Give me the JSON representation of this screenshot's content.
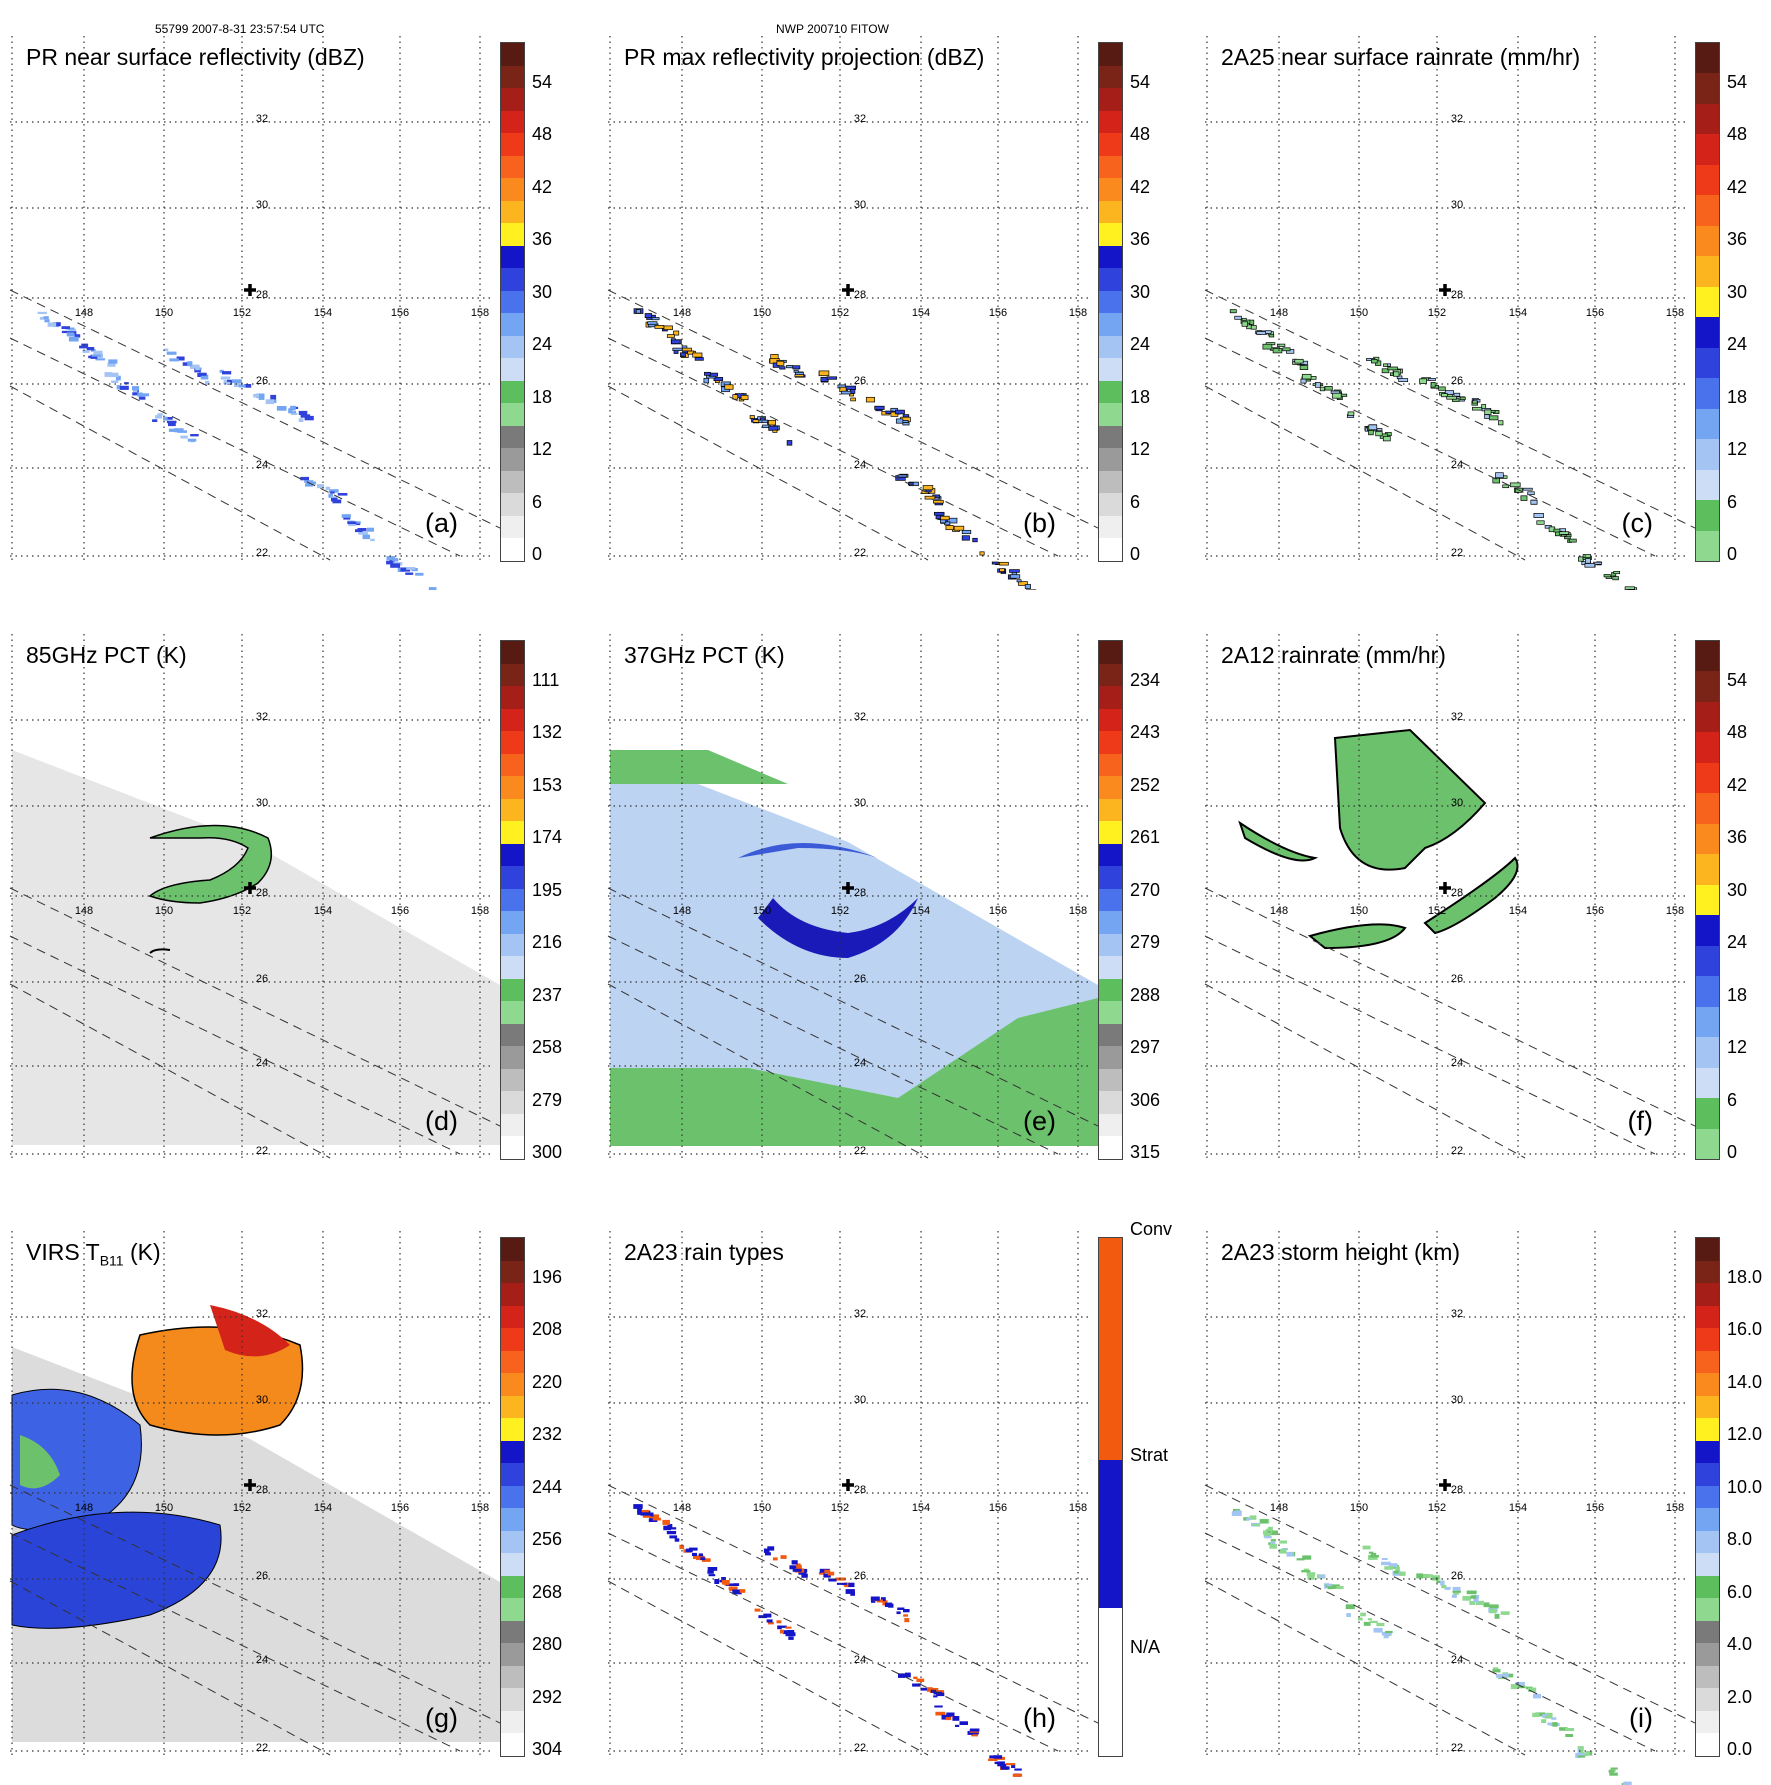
{
  "header": {
    "left": "55799 2007-8-31 23:57:54 UTC",
    "center": "NWP 200710 FITOW"
  },
  "map": {
    "lon_labels": [
      "148",
      "150",
      "152",
      "154",
      "156",
      "158"
    ],
    "lat_labels": [
      "32",
      "30",
      "28",
      "26",
      "24",
      "22"
    ],
    "center_marker": "storm-center-cross"
  },
  "panels": [
    {
      "id": "a",
      "title": "PR near surface reflectivity (dBZ)",
      "label": "(a)",
      "ticks": [
        "54",
        "48",
        "42",
        "36",
        "30",
        "24",
        "18",
        "12",
        "6",
        "0"
      ],
      "palette": "reflectivity",
      "field": "pr_strips"
    },
    {
      "id": "b",
      "title": "PR max reflectivity projection (dBZ)",
      "label": "(b)",
      "ticks": [
        "54",
        "48",
        "42",
        "36",
        "30",
        "24",
        "18",
        "12",
        "6",
        "0"
      ],
      "palette": "reflectivity",
      "field": "pr_contours"
    },
    {
      "id": "c",
      "title": "2A25 near surface rainrate (mm/hr)",
      "label": "(c)",
      "ticks": [
        "54",
        "48",
        "42",
        "36",
        "30",
        "24",
        "18",
        "12",
        "6",
        "0"
      ],
      "palette": "rainrate",
      "field": "pr_green"
    },
    {
      "id": "d",
      "title": "85GHz PCT (K)",
      "label": "(d)",
      "ticks": [
        "111",
        "132",
        "153",
        "174",
        "195",
        "216",
        "237",
        "258",
        "279",
        "300"
      ],
      "palette": "reflectivity",
      "field": "pct85"
    },
    {
      "id": "e",
      "title": "37GHz PCT (K)",
      "label": "(e)",
      "ticks": [
        "234",
        "243",
        "252",
        "261",
        "270",
        "279",
        "288",
        "297",
        "306",
        "315"
      ],
      "palette": "reflectivity",
      "field": "pct37"
    },
    {
      "id": "f",
      "title": "2A12 rainrate (mm/hr)",
      "label": "(f)",
      "ticks": [
        "54",
        "48",
        "42",
        "36",
        "30",
        "24",
        "18",
        "12",
        "6",
        "0"
      ],
      "palette": "rainrate",
      "field": "rain2a12"
    },
    {
      "id": "g",
      "title": "VIRS T",
      "title_sub": "B11",
      "title_suffix": " (K)",
      "label": "(g)",
      "ticks": [
        "196",
        "208",
        "220",
        "232",
        "244",
        "256",
        "268",
        "280",
        "292",
        "304"
      ],
      "palette": "reflectivity",
      "field": "virs"
    },
    {
      "id": "h",
      "title": "2A23 rain types",
      "label": "(h)",
      "ticks": [
        "Conv",
        "Strat",
        "N/A"
      ],
      "palette": "raintype",
      "field": "raintype"
    },
    {
      "id": "i",
      "title": "2A23 storm height (km)",
      "label": "(i)",
      "ticks": [
        "18.0",
        "16.0",
        "14.0",
        "12.0",
        "10.0",
        "8.0",
        "6.0",
        "4.0",
        "2.0",
        "0.0"
      ],
      "palette": "height",
      "field": "height"
    }
  ],
  "palettes": {
    "reflectivity": [
      "#581b14",
      "#7a2417",
      "#a51e17",
      "#d42318",
      "#ef3a1a",
      "#f7631c",
      "#fa8a1d",
      "#fdb51f",
      "#fff01f",
      "#1414c8",
      "#2f42dc",
      "#4a72ec",
      "#73a5f2",
      "#a4c5f4",
      "#cdddf6",
      "#5cbe5c",
      "#8fd88f",
      "#7a7a7a",
      "#9a9a9a",
      "#bdbdbd",
      "#dadada",
      "#efefef",
      "#ffffff"
    ],
    "rainrate": [
      "#581b14",
      "#7a2417",
      "#a51e17",
      "#d42318",
      "#ef3a1a",
      "#f7631c",
      "#fa8a1d",
      "#fdb51f",
      "#fff01f",
      "#1414c8",
      "#2f42dc",
      "#4a72ec",
      "#73a5f2",
      "#a4c5f4",
      "#cdddf6",
      "#5cbe5c",
      "#8fd88f"
    ],
    "height": [
      "#581b14",
      "#7a2417",
      "#a51e17",
      "#d42318",
      "#ef3a1a",
      "#f7631c",
      "#fa8a1d",
      "#fdb51f",
      "#fff01f",
      "#1414c8",
      "#2f42dc",
      "#4a72ec",
      "#73a5f2",
      "#a4c5f4",
      "#cdddf6",
      "#5cbe5c",
      "#8fd88f",
      "#7a7a7a",
      "#9a9a9a",
      "#bdbdbd",
      "#dadada",
      "#efefef",
      "#ffffff"
    ],
    "raintype": [
      "#f25a10",
      "#f25a10",
      "#f25a10",
      "#1414c8",
      "#1414c8",
      "#ffffff",
      "#ffffff"
    ]
  }
}
